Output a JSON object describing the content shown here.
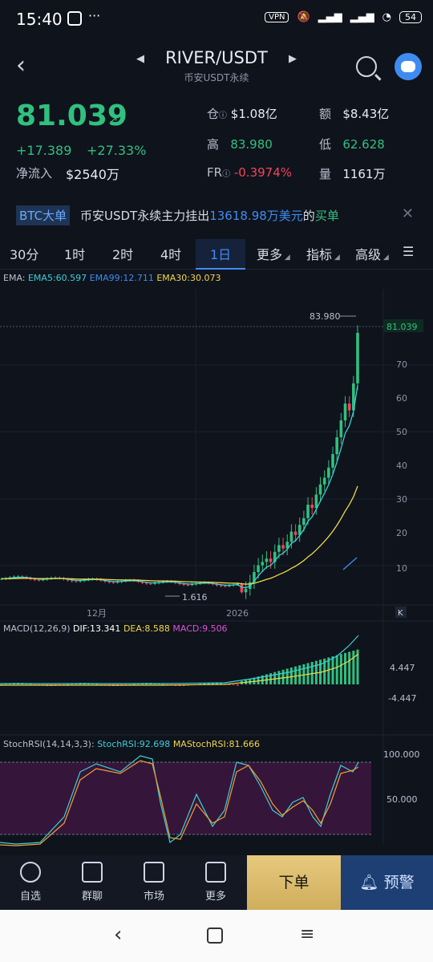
{
  "status": {
    "time": "15:40",
    "vpn": "VPN",
    "battery": "54"
  },
  "header": {
    "pair": "RIVER/USDT",
    "subtitle": "币安USDT永续"
  },
  "ticker": {
    "price": "81.039",
    "change_abs": "+17.389",
    "change_pct": "+27.33%",
    "net_inflow_label": "净流入",
    "net_inflow": "$2540万",
    "oi_label": "仓",
    "oi": "$1.08亿",
    "amount_label": "额",
    "amount": "$8.43亿",
    "high_label": "高",
    "high": "83.980",
    "low_label": "低",
    "low": "62.628",
    "fr_label": "FR",
    "fr": "-0.3974%",
    "vol_label": "量",
    "vol": "1161万"
  },
  "alert": {
    "tag": "BTC大单",
    "text_a": "币安USDT永续主力挂出",
    "text_b": "13618.98万美元",
    "text_c": "的",
    "text_d": "买单"
  },
  "tabs": [
    "30分",
    "1时",
    "2时",
    "4时",
    "1日",
    "更多",
    "指标",
    "高级"
  ],
  "ema": {
    "label": "EMA:",
    "ema5": "EMA5:60.597",
    "ema99": "EMA99:12.711",
    "ema30": "EMA30:30.073"
  },
  "chart_labels": {
    "high_marker": "83.980",
    "low_marker": "1.616",
    "last_price": "81.039",
    "x1": "12月",
    "x2": "2026"
  },
  "y_ticks": [
    "70",
    "60",
    "50",
    "40",
    "30",
    "20",
    "10"
  ],
  "macd": {
    "label": "MACD(12,26,9)",
    "dif": "DIF:13.341",
    "dea": "DEA:8.588",
    "macd": "MACD:9.506",
    "t1": "4.447",
    "t2": "-4.447"
  },
  "rsi": {
    "label": "StochRSI(14,14,3,3):",
    "rsi": "StochRSI:92.698",
    "ma": "MAStochRSI:81.666",
    "t1": "100.000",
    "t2": "50.000"
  },
  "nav": {
    "watch": "自选",
    "chat": "群聊",
    "market": "市场",
    "more": "更多",
    "order": "下单",
    "alarm": "预警"
  },
  "colors": {
    "up": "#30c07f",
    "down": "#f0455a",
    "accent": "#3f8cf0",
    "ema5": "#3bd0d8",
    "ema30": "#f0d84a",
    "ema99": "#3f8cf0"
  }
}
